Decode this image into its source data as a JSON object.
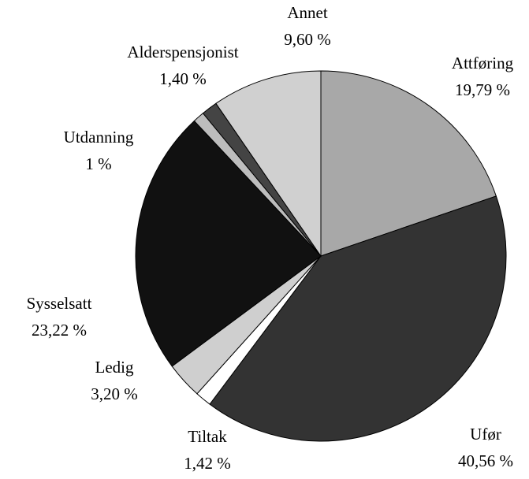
{
  "chart_data": {
    "type": "pie",
    "categories": [
      "Attføring",
      "Ufør",
      "Tiltak",
      "Ledig",
      "Sysselsatt",
      "Utdanning",
      "Alderspensjonist",
      "Annet"
    ],
    "values": [
      19.79,
      40.56,
      1.42,
      3.2,
      23.22,
      1,
      1.4,
      9.6
    ],
    "value_labels": [
      "19,79 %",
      "40,56 %",
      "1,42 %",
      "3,20 %",
      "23,22 %",
      "1 %",
      "1,40 %",
      "9,60 %"
    ],
    "colors": [
      "#a8a8a8",
      "#333333",
      "#ffffff",
      "#cfcfcf",
      "#111111",
      "#bdbdbd",
      "#444444",
      "#d0d0d0"
    ]
  }
}
